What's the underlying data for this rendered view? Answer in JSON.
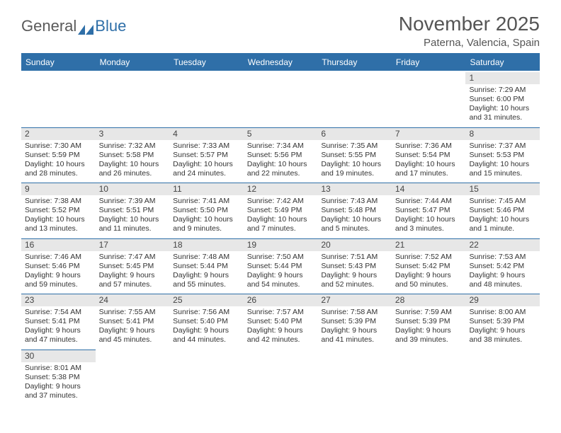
{
  "logo": {
    "part1": "General",
    "part2": "Blue"
  },
  "title": "November 2025",
  "location": "Paterna, Valencia, Spain",
  "dayNames": [
    "Sunday",
    "Monday",
    "Tuesday",
    "Wednesday",
    "Thursday",
    "Friday",
    "Saturday"
  ],
  "colors": {
    "brand": "#2f6fa8",
    "headerGray": "#e7e7e7",
    "text": "#333333"
  },
  "weeks": [
    [
      {
        "n": "",
        "sr": "",
        "ss": "",
        "dl": ""
      },
      {
        "n": "",
        "sr": "",
        "ss": "",
        "dl": ""
      },
      {
        "n": "",
        "sr": "",
        "ss": "",
        "dl": ""
      },
      {
        "n": "",
        "sr": "",
        "ss": "",
        "dl": ""
      },
      {
        "n": "",
        "sr": "",
        "ss": "",
        "dl": ""
      },
      {
        "n": "",
        "sr": "",
        "ss": "",
        "dl": ""
      },
      {
        "n": "1",
        "sr": "Sunrise: 7:29 AM",
        "ss": "Sunset: 6:00 PM",
        "dl": "Daylight: 10 hours and 31 minutes."
      }
    ],
    [
      {
        "n": "2",
        "sr": "Sunrise: 7:30 AM",
        "ss": "Sunset: 5:59 PM",
        "dl": "Daylight: 10 hours and 28 minutes."
      },
      {
        "n": "3",
        "sr": "Sunrise: 7:32 AM",
        "ss": "Sunset: 5:58 PM",
        "dl": "Daylight: 10 hours and 26 minutes."
      },
      {
        "n": "4",
        "sr": "Sunrise: 7:33 AM",
        "ss": "Sunset: 5:57 PM",
        "dl": "Daylight: 10 hours and 24 minutes."
      },
      {
        "n": "5",
        "sr": "Sunrise: 7:34 AM",
        "ss": "Sunset: 5:56 PM",
        "dl": "Daylight: 10 hours and 22 minutes."
      },
      {
        "n": "6",
        "sr": "Sunrise: 7:35 AM",
        "ss": "Sunset: 5:55 PM",
        "dl": "Daylight: 10 hours and 19 minutes."
      },
      {
        "n": "7",
        "sr": "Sunrise: 7:36 AM",
        "ss": "Sunset: 5:54 PM",
        "dl": "Daylight: 10 hours and 17 minutes."
      },
      {
        "n": "8",
        "sr": "Sunrise: 7:37 AM",
        "ss": "Sunset: 5:53 PM",
        "dl": "Daylight: 10 hours and 15 minutes."
      }
    ],
    [
      {
        "n": "9",
        "sr": "Sunrise: 7:38 AM",
        "ss": "Sunset: 5:52 PM",
        "dl": "Daylight: 10 hours and 13 minutes."
      },
      {
        "n": "10",
        "sr": "Sunrise: 7:39 AM",
        "ss": "Sunset: 5:51 PM",
        "dl": "Daylight: 10 hours and 11 minutes."
      },
      {
        "n": "11",
        "sr": "Sunrise: 7:41 AM",
        "ss": "Sunset: 5:50 PM",
        "dl": "Daylight: 10 hours and 9 minutes."
      },
      {
        "n": "12",
        "sr": "Sunrise: 7:42 AM",
        "ss": "Sunset: 5:49 PM",
        "dl": "Daylight: 10 hours and 7 minutes."
      },
      {
        "n": "13",
        "sr": "Sunrise: 7:43 AM",
        "ss": "Sunset: 5:48 PM",
        "dl": "Daylight: 10 hours and 5 minutes."
      },
      {
        "n": "14",
        "sr": "Sunrise: 7:44 AM",
        "ss": "Sunset: 5:47 PM",
        "dl": "Daylight: 10 hours and 3 minutes."
      },
      {
        "n": "15",
        "sr": "Sunrise: 7:45 AM",
        "ss": "Sunset: 5:46 PM",
        "dl": "Daylight: 10 hours and 1 minute."
      }
    ],
    [
      {
        "n": "16",
        "sr": "Sunrise: 7:46 AM",
        "ss": "Sunset: 5:46 PM",
        "dl": "Daylight: 9 hours and 59 minutes."
      },
      {
        "n": "17",
        "sr": "Sunrise: 7:47 AM",
        "ss": "Sunset: 5:45 PM",
        "dl": "Daylight: 9 hours and 57 minutes."
      },
      {
        "n": "18",
        "sr": "Sunrise: 7:48 AM",
        "ss": "Sunset: 5:44 PM",
        "dl": "Daylight: 9 hours and 55 minutes."
      },
      {
        "n": "19",
        "sr": "Sunrise: 7:50 AM",
        "ss": "Sunset: 5:44 PM",
        "dl": "Daylight: 9 hours and 54 minutes."
      },
      {
        "n": "20",
        "sr": "Sunrise: 7:51 AM",
        "ss": "Sunset: 5:43 PM",
        "dl": "Daylight: 9 hours and 52 minutes."
      },
      {
        "n": "21",
        "sr": "Sunrise: 7:52 AM",
        "ss": "Sunset: 5:42 PM",
        "dl": "Daylight: 9 hours and 50 minutes."
      },
      {
        "n": "22",
        "sr": "Sunrise: 7:53 AM",
        "ss": "Sunset: 5:42 PM",
        "dl": "Daylight: 9 hours and 48 minutes."
      }
    ],
    [
      {
        "n": "23",
        "sr": "Sunrise: 7:54 AM",
        "ss": "Sunset: 5:41 PM",
        "dl": "Daylight: 9 hours and 47 minutes."
      },
      {
        "n": "24",
        "sr": "Sunrise: 7:55 AM",
        "ss": "Sunset: 5:41 PM",
        "dl": "Daylight: 9 hours and 45 minutes."
      },
      {
        "n": "25",
        "sr": "Sunrise: 7:56 AM",
        "ss": "Sunset: 5:40 PM",
        "dl": "Daylight: 9 hours and 44 minutes."
      },
      {
        "n": "26",
        "sr": "Sunrise: 7:57 AM",
        "ss": "Sunset: 5:40 PM",
        "dl": "Daylight: 9 hours and 42 minutes."
      },
      {
        "n": "27",
        "sr": "Sunrise: 7:58 AM",
        "ss": "Sunset: 5:39 PM",
        "dl": "Daylight: 9 hours and 41 minutes."
      },
      {
        "n": "28",
        "sr": "Sunrise: 7:59 AM",
        "ss": "Sunset: 5:39 PM",
        "dl": "Daylight: 9 hours and 39 minutes."
      },
      {
        "n": "29",
        "sr": "Sunrise: 8:00 AM",
        "ss": "Sunset: 5:39 PM",
        "dl": "Daylight: 9 hours and 38 minutes."
      }
    ],
    [
      {
        "n": "30",
        "sr": "Sunrise: 8:01 AM",
        "ss": "Sunset: 5:38 PM",
        "dl": "Daylight: 9 hours and 37 minutes."
      },
      {
        "n": "",
        "sr": "",
        "ss": "",
        "dl": ""
      },
      {
        "n": "",
        "sr": "",
        "ss": "",
        "dl": ""
      },
      {
        "n": "",
        "sr": "",
        "ss": "",
        "dl": ""
      },
      {
        "n": "",
        "sr": "",
        "ss": "",
        "dl": ""
      },
      {
        "n": "",
        "sr": "",
        "ss": "",
        "dl": ""
      },
      {
        "n": "",
        "sr": "",
        "ss": "",
        "dl": ""
      }
    ]
  ]
}
